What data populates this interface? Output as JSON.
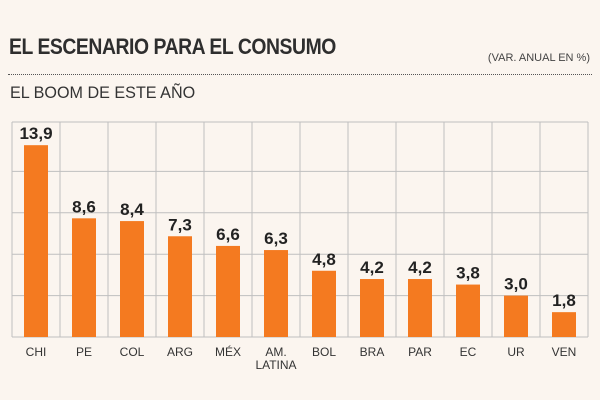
{
  "header": {
    "title": "EL ESCENARIO PARA EL CONSUMO",
    "units": "(VAR. ANUAL EN %)",
    "subtitle": "EL BOOM DE ESTE AÑO"
  },
  "colors": {
    "bar": "#f47a20",
    "grid": "#bfbfbf",
    "background": "#fbf5ef"
  },
  "chart_data": {
    "type": "bar",
    "title": "EL ESCENARIO PARA EL CONSUMO",
    "subtitle": "EL BOOM DE ESTE AÑO",
    "ylabel": "(VAR. ANUAL EN %)",
    "categories": [
      "CHI",
      "PE",
      "COL",
      "ARG",
      "MÉX",
      "AM. LATINA",
      "BOL",
      "BRA",
      "PAR",
      "EC",
      "UR",
      "VEN"
    ],
    "category_lines": [
      [
        "CHI"
      ],
      [
        "PE"
      ],
      [
        "COL"
      ],
      [
        "ARG"
      ],
      [
        "MÉX"
      ],
      [
        "AM.",
        "LATINA"
      ],
      [
        "BOL"
      ],
      [
        "BRA"
      ],
      [
        "PAR"
      ],
      [
        "EC"
      ],
      [
        "UR"
      ],
      [
        "VEN"
      ]
    ],
    "values": [
      13.9,
      8.6,
      8.4,
      7.3,
      6.6,
      6.3,
      4.8,
      4.2,
      4.2,
      3.8,
      3.0,
      1.8
    ],
    "value_labels": [
      "13,9",
      "8,6",
      "8,4",
      "7,3",
      "6,6",
      "6,3",
      "4,8",
      "4,2",
      "4,2",
      "3,8",
      "3,0",
      "1,8"
    ],
    "ylim": [
      0,
      15
    ],
    "grid": true
  }
}
